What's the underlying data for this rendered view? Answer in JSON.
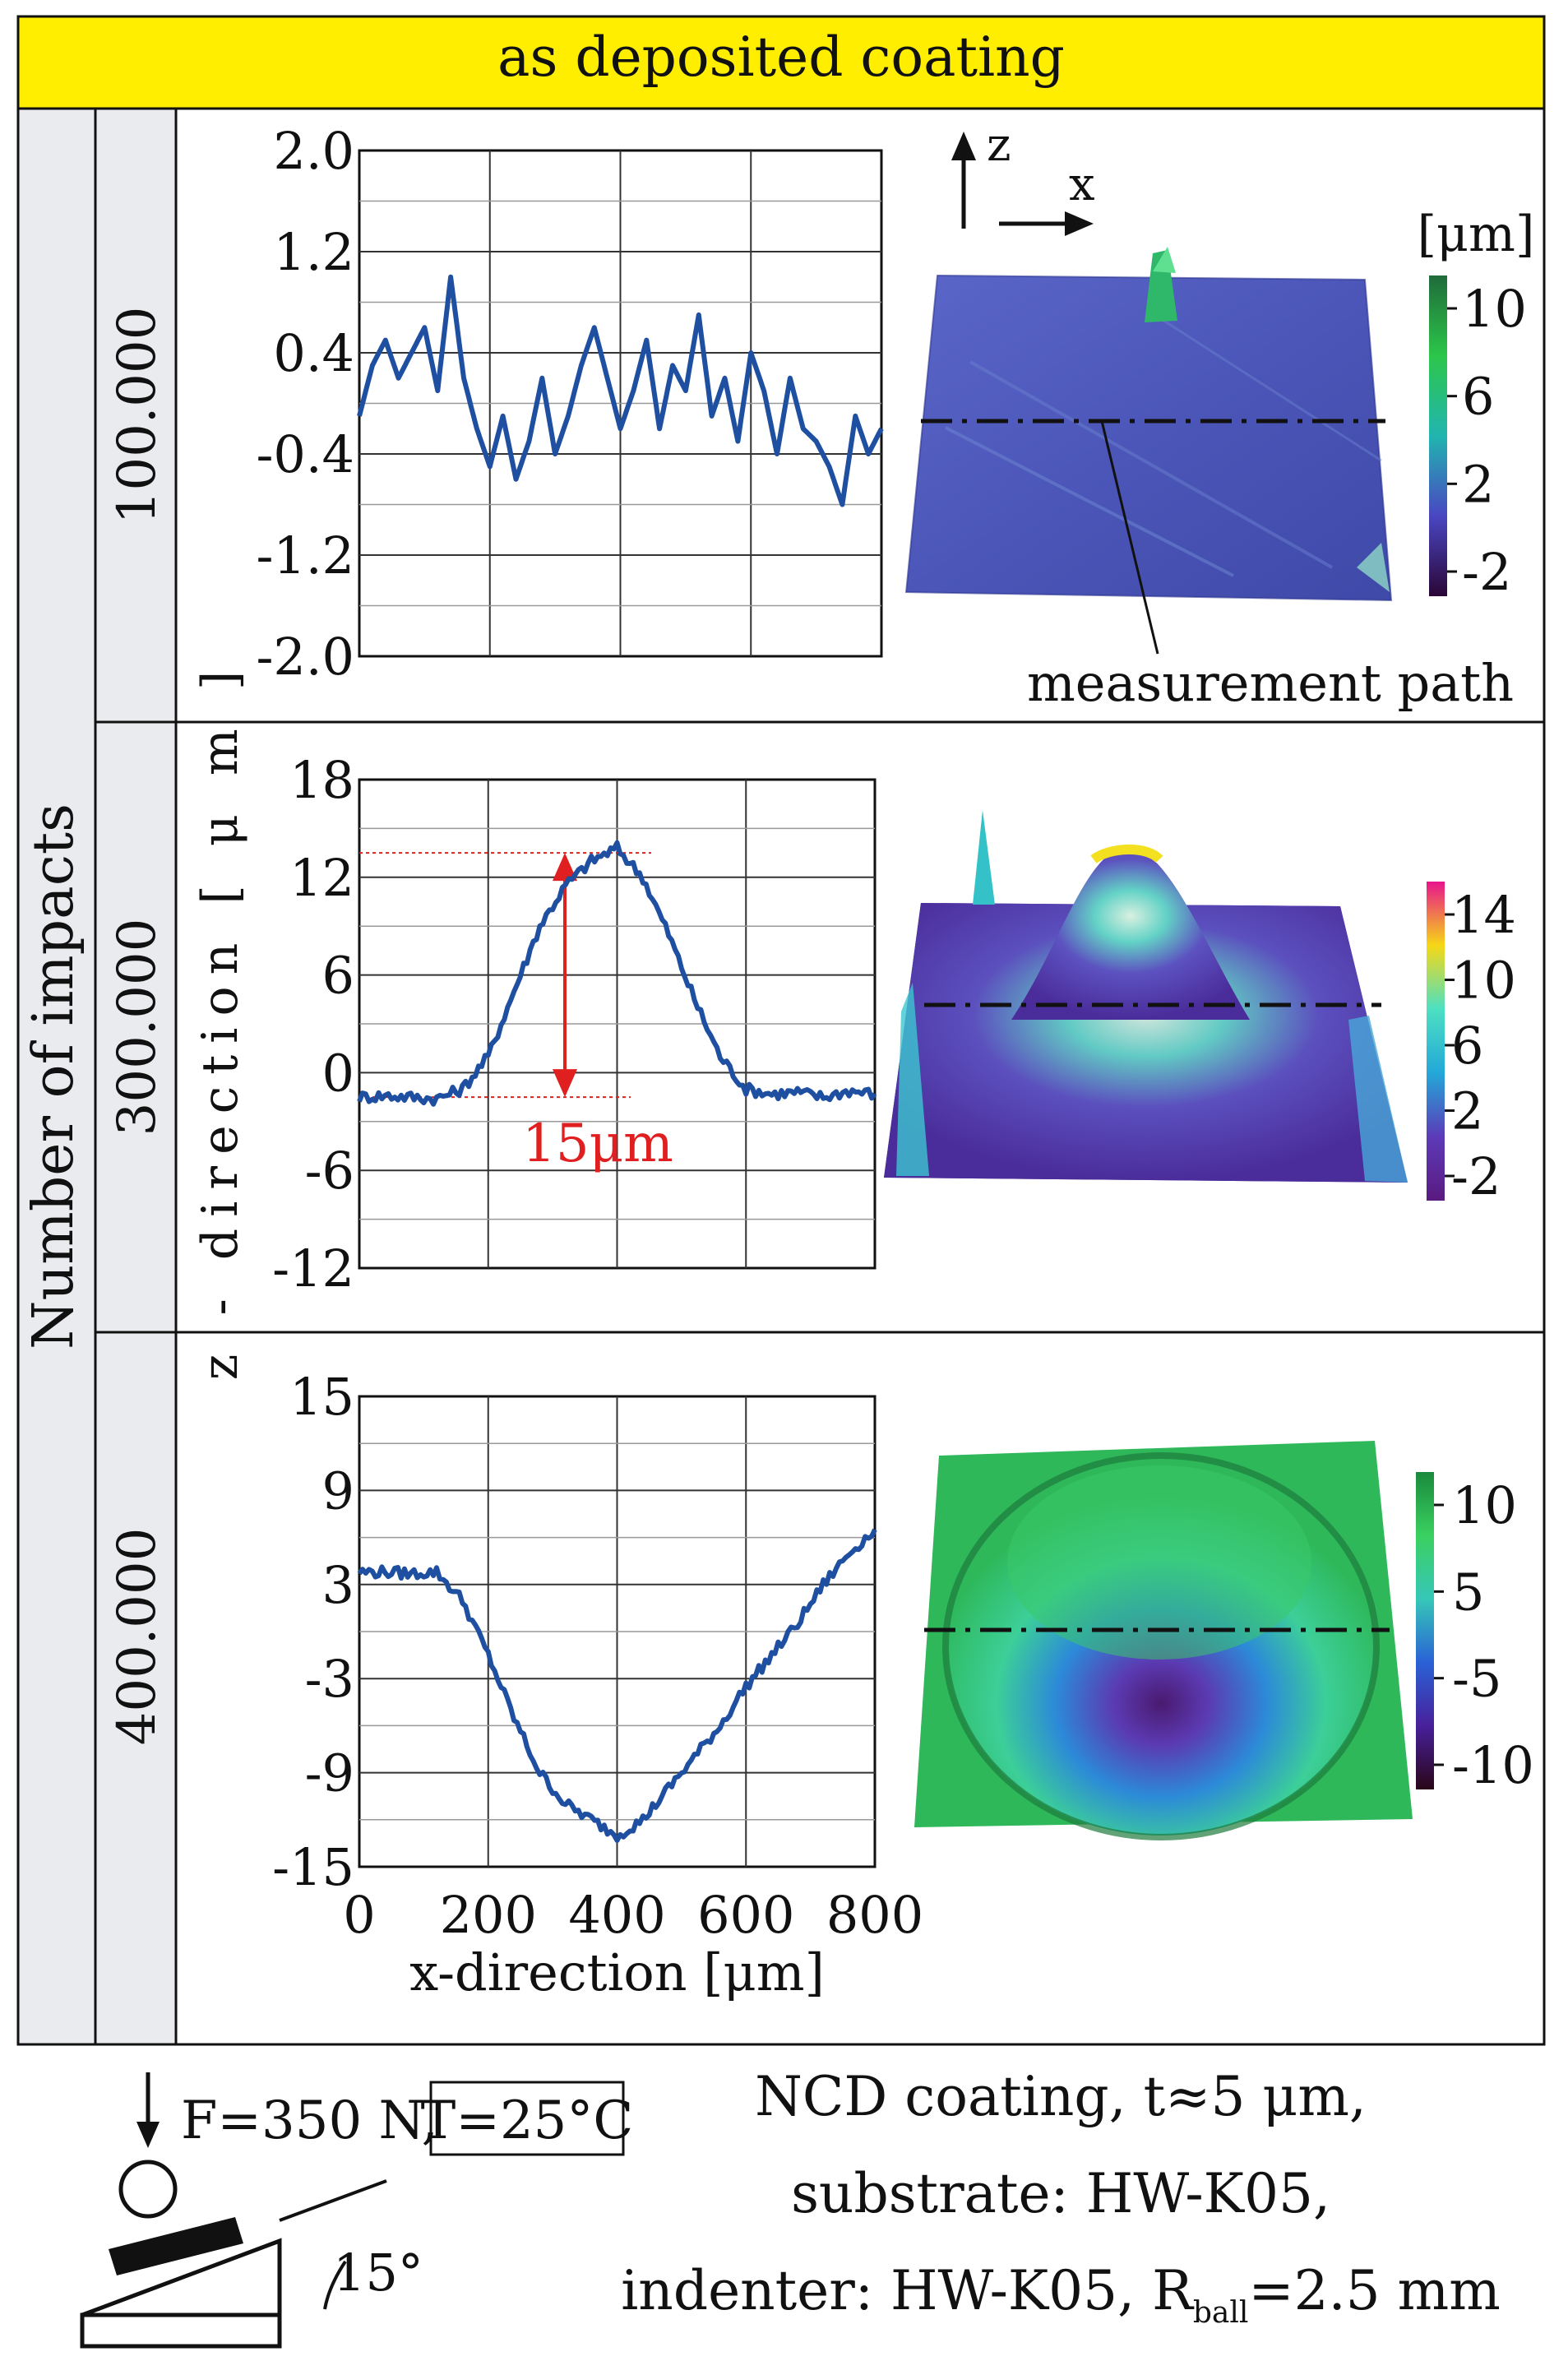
{
  "header": {
    "title": "as deposited coating",
    "color": "#ffee00"
  },
  "side_label": "Number of impacts",
  "shared_ylabel": "z - direction [ μ m ]",
  "measurement_label": "measurement path",
  "axes_label": {
    "z": "z",
    "x": "x"
  },
  "chart_data": [
    {
      "type": "line",
      "row_label": "100.000",
      "ylim": [
        -2.0,
        2.0
      ],
      "yticks": [
        "2.0",
        "1.2",
        "0.4",
        "-0.4",
        "-1.2",
        "-2.0"
      ],
      "x": [
        0,
        20,
        40,
        60,
        80,
        100,
        120,
        140,
        160,
        180,
        200,
        220,
        240,
        260,
        280,
        300,
        320,
        340,
        360,
        380,
        400,
        420,
        440,
        460,
        480,
        500,
        520,
        540,
        560,
        580,
        600,
        620,
        640,
        660,
        680,
        700,
        720,
        740,
        760,
        780,
        800
      ],
      "y": [
        -0.1,
        0.3,
        0.5,
        0.2,
        0.4,
        0.6,
        0.1,
        1.0,
        0.2,
        -0.2,
        -0.5,
        -0.1,
        -0.6,
        -0.3,
        0.2,
        -0.4,
        -0.1,
        0.3,
        0.6,
        0.2,
        -0.2,
        0.1,
        0.5,
        -0.2,
        0.3,
        0.1,
        0.7,
        -0.1,
        0.2,
        -0.3,
        0.4,
        0.1,
        -0.4,
        0.2,
        -0.2,
        -0.3,
        -0.5,
        -0.8,
        -0.1,
        -0.4,
        -0.2
      ]
    },
    {
      "type": "line",
      "row_label": "300.000",
      "ylim": [
        -12,
        18
      ],
      "yticks": [
        "18",
        "12",
        "6",
        "0",
        "-6",
        "-12"
      ],
      "annotation": "15μm",
      "x": [
        0,
        40,
        80,
        120,
        160,
        200,
        240,
        280,
        320,
        360,
        400,
        440,
        480,
        520,
        560,
        600,
        640,
        680,
        720,
        760,
        800
      ],
      "y": [
        -1.5,
        -1.4,
        -1.5,
        -1.6,
        -1.0,
        1.0,
        5.0,
        9.0,
        11.5,
        13.0,
        13.8,
        12.0,
        8.5,
        4.5,
        1.0,
        -1.0,
        -1.3,
        -1.2,
        -1.5,
        -1.1,
        -1.3
      ]
    },
    {
      "type": "line",
      "row_label": "400.000",
      "ylim": [
        -15,
        15
      ],
      "yticks": [
        "15",
        "9",
        "3",
        "-3",
        "-9",
        "-15"
      ],
      "xticks": [
        "0",
        "200",
        "400",
        "600",
        "800"
      ],
      "xlabel": "x-direction [μm]",
      "x": [
        0,
        40,
        80,
        120,
        160,
        200,
        240,
        280,
        320,
        360,
        400,
        440,
        480,
        520,
        560,
        600,
        640,
        680,
        720,
        760,
        800
      ],
      "y": [
        3.8,
        3.8,
        3.7,
        3.8,
        2.0,
        -1.5,
        -5.5,
        -9.0,
        -11.0,
        -12.0,
        -13.0,
        -12.0,
        -10.0,
        -8.0,
        -6.0,
        -3.5,
        -1.5,
        0.5,
        3.0,
        5.0,
        6.5
      ]
    }
  ],
  "colorbars": [
    {
      "unit": "[μm]",
      "ticks": [
        "10",
        "6",
        "2",
        "-2"
      ],
      "stops": [
        "#1f6b3a",
        "#2cc64a",
        "#21b5b0",
        "#4a46c2",
        "#2a0636"
      ]
    },
    {
      "ticks": [
        "14",
        "10",
        "6",
        "2",
        "-2"
      ],
      "stops": [
        "#e8148c",
        "#f6d816",
        "#4ce0c2",
        "#23a8d8",
        "#5c3ab8",
        "#5a1a80"
      ]
    },
    {
      "ticks": [
        "10",
        "5",
        "-5",
        "-10"
      ],
      "stops": [
        "#1a8a3c",
        "#3ad060",
        "#36c7b8",
        "#2a62d6",
        "#48209a",
        "#2a0618"
      ]
    }
  ],
  "footer": {
    "force": "F=350 N,",
    "temp": "T=25°C",
    "angle": "15°",
    "desc1": "NCD coating, t≈5 μm,",
    "desc2": "substrate: HW-K05,",
    "desc3_a": "indenter: HW-K05, R",
    "desc3_sub": "ball",
    "desc3_b": "=2.5 mm"
  },
  "colors": {
    "line": "#1f4fa0",
    "annotation": "#e02020",
    "grid": "#333333"
  }
}
